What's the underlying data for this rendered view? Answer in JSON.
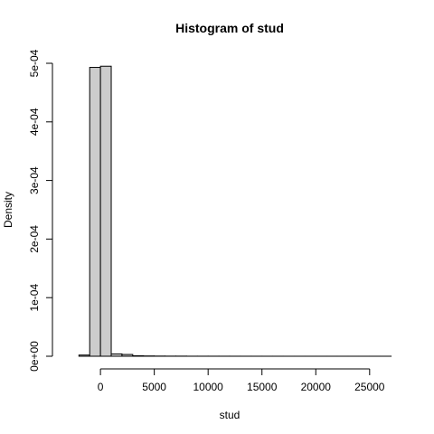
{
  "chart_data": {
    "type": "bar",
    "title": "Histogram of stud",
    "xlabel": "stud",
    "ylabel": "Density",
    "bin_width": 1000,
    "bins": [
      {
        "start": -2000,
        "end": -1000,
        "density": 2e-06
      },
      {
        "start": -1000,
        "end": 0,
        "density": 0.000493
      },
      {
        "start": 0,
        "end": 1000,
        "density": 0.000495
      },
      {
        "start": 1000,
        "end": 2000,
        "density": 4e-06
      },
      {
        "start": 2000,
        "end": 3000,
        "density": 3e-06
      },
      {
        "start": 3000,
        "end": 4000,
        "density": 8e-07
      },
      {
        "start": 4000,
        "end": 5000,
        "density": 5e-07
      },
      {
        "start": 5000,
        "end": 6000,
        "density": 3e-07
      },
      {
        "start": 6000,
        "end": 7000,
        "density": 2e-07
      },
      {
        "start": 7000,
        "end": 8000,
        "density": 2e-07
      },
      {
        "start": 8000,
        "end": 9000,
        "density": 1e-07
      },
      {
        "start": 9000,
        "end": 10000,
        "density": 1e-07
      },
      {
        "start": 10000,
        "end": 11000,
        "density": 1e-07
      },
      {
        "start": 11000,
        "end": 12000,
        "density": 8e-08
      },
      {
        "start": 12000,
        "end": 13000,
        "density": 6e-08
      },
      {
        "start": 13000,
        "end": 14000,
        "density": 5e-08
      },
      {
        "start": 14000,
        "end": 15000,
        "density": 4e-08
      },
      {
        "start": 15000,
        "end": 16000,
        "density": 3e-08
      },
      {
        "start": 16000,
        "end": 17000,
        "density": 3e-08
      },
      {
        "start": 17000,
        "end": 18000,
        "density": 2e-08
      },
      {
        "start": 18000,
        "end": 19000,
        "density": 2e-08
      },
      {
        "start": 19000,
        "end": 20000,
        "density": 2e-08
      },
      {
        "start": 20000,
        "end": 21000,
        "density": 1e-08
      },
      {
        "start": 21000,
        "end": 22000,
        "density": 1e-08
      },
      {
        "start": 22000,
        "end": 23000,
        "density": 1e-08
      },
      {
        "start": 23000,
        "end": 24000,
        "density": 1e-08
      },
      {
        "start": 24000,
        "end": 25000,
        "density": 1e-08
      },
      {
        "start": 25000,
        "end": 26000,
        "density": 1e-08
      },
      {
        "start": 26000,
        "end": 27000,
        "density": 1e-08
      }
    ],
    "x_ticks": [
      {
        "value": 0,
        "label": "0"
      },
      {
        "value": 5000,
        "label": "5000"
      },
      {
        "value": 10000,
        "label": "10000"
      },
      {
        "value": 15000,
        "label": "15000"
      },
      {
        "value": 20000,
        "label": "20000"
      },
      {
        "value": 25000,
        "label": "25000"
      }
    ],
    "y_ticks": [
      {
        "value": 0,
        "label": "0e+00"
      },
      {
        "value": 0.0001,
        "label": "1e-04"
      },
      {
        "value": 0.0002,
        "label": "2e-04"
      },
      {
        "value": 0.0003,
        "label": "3e-04"
      },
      {
        "value": 0.0004,
        "label": "4e-04"
      },
      {
        "value": 0.0005,
        "label": "5e-04"
      }
    ],
    "xlim": [
      -3200,
      27200
    ],
    "ylim": [
      0,
      0.0005
    ],
    "grid": false,
    "legend": "none",
    "colors": {
      "bar_fill": "#cccccc",
      "bar_stroke": "#000000",
      "axis": "#000000",
      "background": "#ffffff"
    }
  }
}
